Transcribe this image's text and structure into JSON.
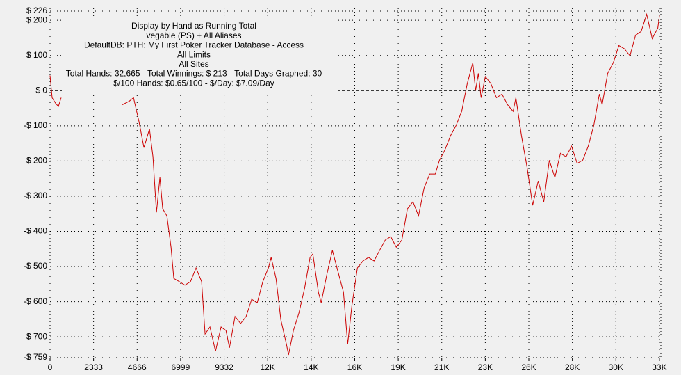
{
  "chart_data": {
    "type": "line",
    "annotations": [
      "Display by Hand as Running Total",
      "vegable (PS) + All Aliases",
      "DefaultDB: PTH: My First Poker Tracker Database - Access",
      "All Limits",
      "All Sites",
      "Total Hands: 32,665 - Total Winnings: $ 213 - Total Days Graphed: 30",
      "$/100 Hands: $0.65/100 - $/Day: $7.09/Day"
    ],
    "color": "#cc0000",
    "grid": true,
    "xlim": [
      0,
      32665
    ],
    "ylim": [
      -759,
      226
    ],
    "xticks": [
      0,
      2333,
      4666,
      6999,
      9332,
      {
        "value": 11665,
        "label": "12K"
      },
      {
        "value": 13998,
        "label": "14K"
      },
      {
        "value": 16331,
        "label": "16K"
      },
      {
        "value": 18664,
        "label": "19K"
      },
      {
        "value": 20997,
        "label": "21K"
      },
      {
        "value": 23330,
        "label": "23K"
      },
      {
        "value": 25663,
        "label": "26K"
      },
      {
        "value": 27996,
        "label": "28K"
      },
      {
        "value": 30329,
        "label": "30K"
      },
      {
        "value": 32662,
        "label": "33K"
      }
    ],
    "yticks": [
      {
        "value": 226,
        "label": "$ 226"
      },
      {
        "value": 200,
        "label": "$ 200"
      },
      {
        "value": 100,
        "label": "$ 100"
      },
      {
        "value": 0,
        "label": "$ 0"
      },
      {
        "value": -100,
        "label": "-$ 100"
      },
      {
        "value": -200,
        "label": "-$ 200"
      },
      {
        "value": -300,
        "label": "-$ 300"
      },
      {
        "value": -400,
        "label": "-$ 400"
      },
      {
        "value": -500,
        "label": "-$ 500"
      },
      {
        "value": -600,
        "label": "-$ 600"
      },
      {
        "value": -700,
        "label": "-$ 700"
      },
      {
        "value": -759,
        "label": "-$ 759"
      }
    ],
    "x": [
      0,
      112,
      298,
      447,
      596,
      null,
      3876,
      4249,
      4472,
      4770,
      5031,
      5330,
      5516,
      5702,
      5889,
      6038,
      6261,
      6485,
      6634,
      6932,
      7230,
      7529,
      7827,
      8125,
      8311,
      8572,
      8870,
      9168,
      9429,
      9616,
      9914,
      10212,
      10510,
      10808,
      11106,
      11405,
      11703,
      11852,
      12113,
      12374,
      12672,
      12784,
      13044,
      13343,
      13641,
      13939,
      14088,
      14386,
      14535,
      14833,
      15132,
      15430,
      15728,
      15952,
      16175,
      16473,
      16772,
      17070,
      17368,
      17666,
      17964,
      18262,
      18561,
      18859,
      19157,
      19455,
      19753,
      20051,
      20350,
      20648,
      20871,
      21169,
      21468,
      21766,
      22064,
      22362,
      22660,
      22809,
      22958,
      23107,
      23331,
      23629,
      23927,
      24225,
      24524,
      24822,
      24971,
      25269,
      25567,
      25866,
      26164,
      26462,
      26760,
      27058,
      27357,
      27655,
      27953,
      28251,
      28549,
      28848,
      29146,
      29444,
      29593,
      29891,
      30189,
      30488,
      30786,
      31084,
      31382,
      31680,
      31979,
      32277,
      32575,
      32665
    ],
    "values": [
      43,
      -20,
      -36,
      -45,
      -20,
      null,
      -40,
      -30,
      -20,
      -89,
      -162,
      -109,
      -188,
      -346,
      -247,
      -336,
      -356,
      -445,
      -534,
      -543,
      -553,
      -543,
      -504,
      -543,
      -692,
      -672,
      -741,
      -672,
      -682,
      -731,
      -642,
      -662,
      -642,
      -593,
      -603,
      -543,
      -504,
      -474,
      -534,
      -652,
      -721,
      -751,
      -682,
      -632,
      -563,
      -474,
      -464,
      -573,
      -603,
      -524,
      -454,
      -514,
      -573,
      -721,
      -613,
      -504,
      -484,
      -474,
      -484,
      -454,
      -425,
      -415,
      -445,
      -425,
      -336,
      -316,
      -356,
      -277,
      -237,
      -237,
      -198,
      -168,
      -128,
      -99,
      -59,
      20,
      79,
      0,
      49,
      -20,
      40,
      20,
      -20,
      -10,
      -40,
      -59,
      -20,
      -128,
      -217,
      -326,
      -257,
      -316,
      -198,
      -247,
      -178,
      -188,
      -158,
      -207,
      -198,
      -158,
      -99,
      -10,
      -40,
      49,
      79,
      128,
      119,
      99,
      158,
      168,
      217,
      148,
      178,
      213
    ]
  }
}
